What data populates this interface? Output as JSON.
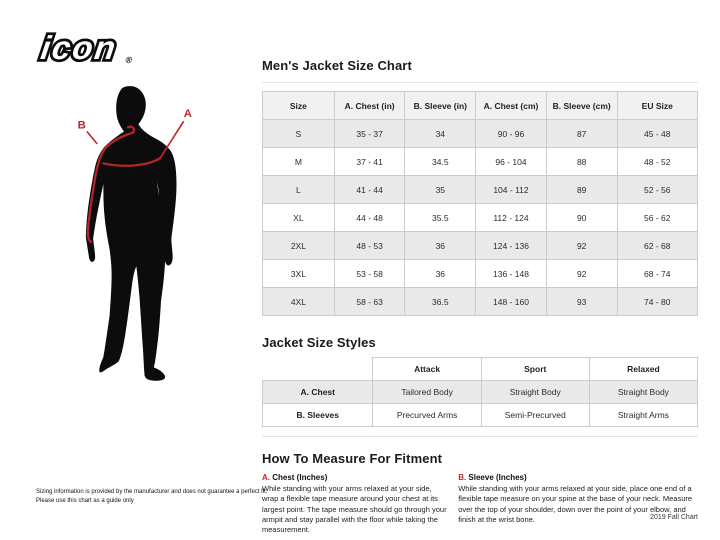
{
  "brand": {
    "logo_text": "icon",
    "registered_mark": "®"
  },
  "diagram": {
    "label_a": "A",
    "label_b": "B"
  },
  "size_chart": {
    "title": "Men's Jacket Size Chart",
    "columns": [
      "Size",
      "A. Chest (in)",
      "B. Sleeve (in)",
      "A. Chest (cm)",
      "B. Sleeve (cm)",
      "EU Size"
    ],
    "rows": [
      [
        "S",
        "35 - 37",
        "34",
        "90 - 96",
        "87",
        "45 - 48"
      ],
      [
        "M",
        "37 - 41",
        "34.5",
        "96 - 104",
        "88",
        "48 - 52"
      ],
      [
        "L",
        "41 - 44",
        "35",
        "104 - 112",
        "89",
        "52 - 56"
      ],
      [
        "XL",
        "44 - 48",
        "35.5",
        "112 - 124",
        "90",
        "56 - 62"
      ],
      [
        "2XL",
        "48 - 53",
        "36",
        "124 - 136",
        "92",
        "62 - 68"
      ],
      [
        "3XL",
        "53 - 58",
        "36",
        "136 - 148",
        "92",
        "68 - 74"
      ],
      [
        "4XL",
        "58 - 63",
        "36.5",
        "148 - 160",
        "93",
        "74 - 80"
      ]
    ]
  },
  "style_chart": {
    "title": "Jacket Size Styles",
    "columns": [
      "",
      "Attack",
      "Sport",
      "Relaxed"
    ],
    "rows": [
      [
        "A. Chest",
        "Tailored Body",
        "Straight Body",
        "Straight Body"
      ],
      [
        "B. Sleeves",
        "Precurved Arms",
        "Semi-Precurved",
        "Straight Arms"
      ]
    ]
  },
  "how_to_measure": {
    "title": "How To Measure For Fitment",
    "sections": [
      {
        "letter": "A.",
        "heading": "Chest (Inches)",
        "body": "While standing with your arms relaxed at your side, wrap a flexible tape measure around your chest at its largest point. The tape measure should go through your armpit and stay parallel with the floor while taking the measurement."
      },
      {
        "letter": "B.",
        "heading": "Sleeve (Inches)",
        "body": "While standing with your arms relaxed at your side, place one end of a flexible tape measure on your spine at the base of your neck. Measure over the top of your shoulder, down over the point of your elbow, and finish at the wrist bone."
      }
    ]
  },
  "footer": {
    "disclaimer_line1": "Sizing information is provided by the manufacturer and does not guarantee a perfect fit.",
    "disclaimer_line2": "Please use this chart as a guide only",
    "chart_version": "2019 Fall Chart"
  },
  "colors": {
    "accent_red": "#c1272d",
    "silhouette_black": "#0c0c0c",
    "stripe_gray": "#e9e9e9",
    "table_border": "#cccccc"
  }
}
